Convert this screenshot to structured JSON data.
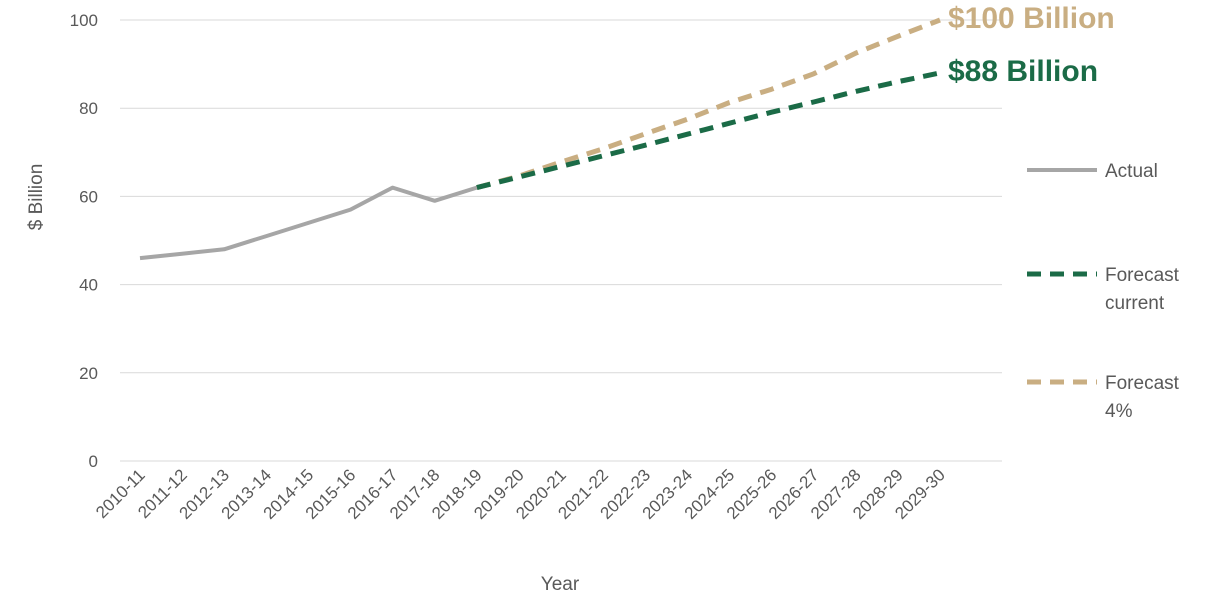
{
  "chart_data": {
    "type": "line",
    "xlabel": "Year",
    "ylabel": "$ Billion",
    "ylim": [
      0,
      100
    ],
    "yticks": [
      0,
      20,
      40,
      60,
      80,
      100
    ],
    "grid": true,
    "legend_position": "right",
    "categories": [
      "2010-11",
      "2011-12",
      "2012-13",
      "2013-14",
      "2014-15",
      "2015-16",
      "2016-17",
      "2017-18",
      "2018-19",
      "2019-20",
      "2020-21",
      "2021-22",
      "2022-23",
      "2023-24",
      "2024-25",
      "2025-26",
      "2026-27",
      "2027-28",
      "2028-29",
      "2029-30"
    ],
    "series": [
      {
        "name": "Actual",
        "style": "solid",
        "color": "#A6A6A6",
        "values": [
          46,
          47,
          48,
          51,
          54,
          57,
          62,
          59,
          62,
          null,
          null,
          null,
          null,
          null,
          null,
          null,
          null,
          null,
          null,
          null
        ]
      },
      {
        "name": "Forecast current",
        "legend_lines": [
          "Forecast",
          "current"
        ],
        "style": "dashed",
        "color": "#1B6B47",
        "values": [
          null,
          null,
          null,
          null,
          null,
          null,
          null,
          null,
          62,
          64.4,
          66.8,
          69.2,
          71.6,
          74.1,
          76.6,
          79.1,
          81.4,
          83.8,
          86.0,
          88
        ]
      },
      {
        "name": "Forecast 4%",
        "legend_lines": [
          "Forecast",
          "4%"
        ],
        "style": "dashed",
        "color": "#C9AE82",
        "values": [
          null,
          null,
          null,
          null,
          null,
          null,
          null,
          null,
          62,
          64.6,
          67.8,
          70.8,
          74.2,
          77.5,
          81.3,
          84.3,
          87.8,
          92.5,
          96.3,
          100
        ]
      }
    ],
    "annotations": [
      {
        "text": "$100 Billion",
        "x": "2029-30",
        "y": 100,
        "color": "#C9AE82"
      },
      {
        "text": "$88 Billion",
        "x": "2029-30",
        "y": 88,
        "color": "#1B6B47"
      }
    ]
  }
}
